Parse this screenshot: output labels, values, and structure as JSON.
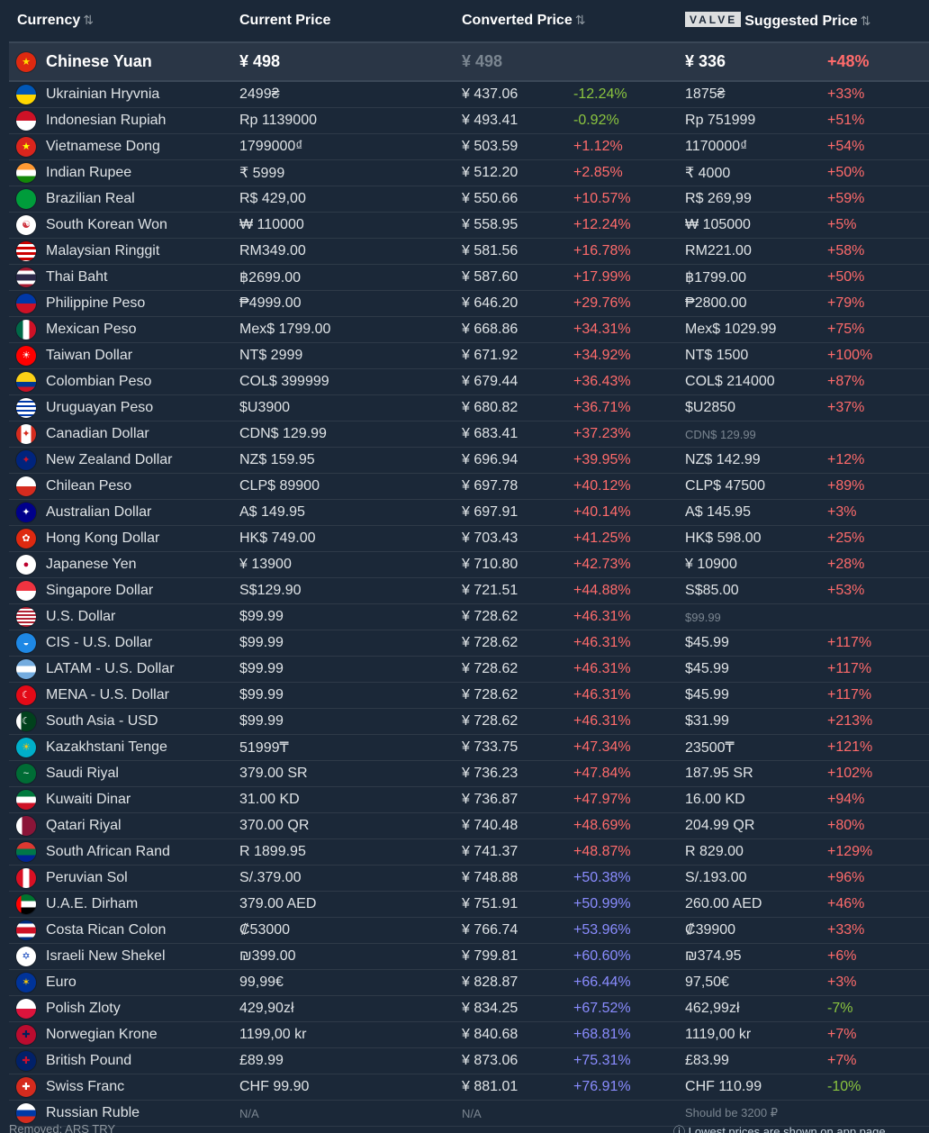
{
  "header": {
    "currency": "Currency",
    "current_price": "Current Price",
    "converted_price": "Converted Price",
    "valve_logo": "VALVE",
    "suggested_price": "Suggested Price",
    "sort_icon": "⇅"
  },
  "base": {
    "name": "Chinese Yuan",
    "flag": "cn",
    "current": "¥ 498",
    "converted": "¥ 498",
    "suggested": "¥ 336",
    "suggested_diff": "+48%"
  },
  "rows": [
    {
      "name": "Ukrainian Hryvnia",
      "flag": "ua",
      "current": "2499₴",
      "converted": "¥ 437.06",
      "diff": "-12.24%",
      "diff_class": "neg",
      "suggested": "1875₴",
      "sdiff": "+33%",
      "sdiff_class": "pos"
    },
    {
      "name": "Indonesian Rupiah",
      "flag": "id",
      "current": "Rp 1139000",
      "converted": "¥ 493.41",
      "diff": "-0.92%",
      "diff_class": "neg",
      "suggested": "Rp 751999",
      "sdiff": "+51%",
      "sdiff_class": "pos"
    },
    {
      "name": "Vietnamese Dong",
      "flag": "vn",
      "current": "1799000₫",
      "converted": "¥ 503.59",
      "diff": "+1.12%",
      "diff_class": "pos",
      "suggested": "1170000₫",
      "sdiff": "+54%",
      "sdiff_class": "pos"
    },
    {
      "name": "Indian Rupee",
      "flag": "in",
      "current": "₹ 5999",
      "converted": "¥ 512.20",
      "diff": "+2.85%",
      "diff_class": "pos",
      "suggested": "₹ 4000",
      "sdiff": "+50%",
      "sdiff_class": "pos"
    },
    {
      "name": "Brazilian Real",
      "flag": "br",
      "current": "R$ 429,00",
      "converted": "¥ 550.66",
      "diff": "+10.57%",
      "diff_class": "pos",
      "suggested": "R$ 269,99",
      "sdiff": "+59%",
      "sdiff_class": "pos"
    },
    {
      "name": "South Korean Won",
      "flag": "kr",
      "current": "₩ 110000",
      "converted": "¥ 558.95",
      "diff": "+12.24%",
      "diff_class": "pos",
      "suggested": "₩ 105000",
      "sdiff": "+5%",
      "sdiff_class": "pos"
    },
    {
      "name": "Malaysian Ringgit",
      "flag": "my",
      "current": "RM349.00",
      "converted": "¥ 581.56",
      "diff": "+16.78%",
      "diff_class": "pos",
      "suggested": "RM221.00",
      "sdiff": "+58%",
      "sdiff_class": "pos"
    },
    {
      "name": "Thai Baht",
      "flag": "th",
      "current": "฿2699.00",
      "converted": "¥ 587.60",
      "diff": "+17.99%",
      "diff_class": "pos",
      "suggested": "฿1799.00",
      "sdiff": "+50%",
      "sdiff_class": "pos"
    },
    {
      "name": "Philippine Peso",
      "flag": "ph",
      "current": "₱4999.00",
      "converted": "¥ 646.20",
      "diff": "+29.76%",
      "diff_class": "pos",
      "suggested": "₱2800.00",
      "sdiff": "+79%",
      "sdiff_class": "pos"
    },
    {
      "name": "Mexican Peso",
      "flag": "mx",
      "current": "Mex$ 1799.00",
      "converted": "¥ 668.86",
      "diff": "+34.31%",
      "diff_class": "pos",
      "suggested": "Mex$ 1029.99",
      "sdiff": "+75%",
      "sdiff_class": "pos"
    },
    {
      "name": "Taiwan Dollar",
      "flag": "tw",
      "current": "NT$ 2999",
      "converted": "¥ 671.92",
      "diff": "+34.92%",
      "diff_class": "pos",
      "suggested": "NT$ 1500",
      "sdiff": "+100%",
      "sdiff_class": "pos"
    },
    {
      "name": "Colombian Peso",
      "flag": "co",
      "current": "COL$ 399999",
      "converted": "¥ 679.44",
      "diff": "+36.43%",
      "diff_class": "pos",
      "suggested": "COL$ 214000",
      "sdiff": "+87%",
      "sdiff_class": "pos"
    },
    {
      "name": "Uruguayan Peso",
      "flag": "uy",
      "current": "$U3900",
      "converted": "¥ 680.82",
      "diff": "+36.71%",
      "diff_class": "pos",
      "suggested": "$U2850",
      "sdiff": "+37%",
      "sdiff_class": "pos"
    },
    {
      "name": "Canadian Dollar",
      "flag": "ca",
      "current": "CDN$ 129.99",
      "converted": "¥ 683.41",
      "diff": "+37.23%",
      "diff_class": "pos",
      "suggested": "CDN$ 129.99",
      "suggested_class": "dim",
      "sdiff": "",
      "sdiff_class": "pos"
    },
    {
      "name": "New Zealand Dollar",
      "flag": "nz",
      "current": "NZ$ 159.95",
      "converted": "¥ 696.94",
      "diff": "+39.95%",
      "diff_class": "pos",
      "suggested": "NZ$ 142.99",
      "sdiff": "+12%",
      "sdiff_class": "pos"
    },
    {
      "name": "Chilean Peso",
      "flag": "cl",
      "current": "CLP$ 89900",
      "converted": "¥ 697.78",
      "diff": "+40.12%",
      "diff_class": "pos",
      "suggested": "CLP$ 47500",
      "sdiff": "+89%",
      "sdiff_class": "pos"
    },
    {
      "name": "Australian Dollar",
      "flag": "au",
      "current": "A$ 149.95",
      "converted": "¥ 697.91",
      "diff": "+40.14%",
      "diff_class": "pos",
      "suggested": "A$ 145.95",
      "sdiff": "+3%",
      "sdiff_class": "pos"
    },
    {
      "name": "Hong Kong Dollar",
      "flag": "hk",
      "current": "HK$ 749.00",
      "converted": "¥ 703.43",
      "diff": "+41.25%",
      "diff_class": "pos",
      "suggested": "HK$ 598.00",
      "sdiff": "+25%",
      "sdiff_class": "pos"
    },
    {
      "name": "Japanese Yen",
      "flag": "jp",
      "current": "¥ 13900",
      "converted": "¥ 710.80",
      "diff": "+42.73%",
      "diff_class": "pos",
      "suggested": "¥ 10900",
      "sdiff": "+28%",
      "sdiff_class": "pos"
    },
    {
      "name": "Singapore Dollar",
      "flag": "sg",
      "current": "S$129.90",
      "converted": "¥ 721.51",
      "diff": "+44.88%",
      "diff_class": "pos",
      "suggested": "S$85.00",
      "sdiff": "+53%",
      "sdiff_class": "pos"
    },
    {
      "name": "U.S. Dollar",
      "flag": "us",
      "current": "$99.99",
      "converted": "¥ 728.62",
      "diff": "+46.31%",
      "diff_class": "pos",
      "suggested": "$99.99",
      "suggested_class": "dim",
      "sdiff": "",
      "sdiff_class": "pos"
    },
    {
      "name": "CIS - U.S. Dollar",
      "flag": "cis",
      "current": "$99.99",
      "converted": "¥ 728.62",
      "diff": "+46.31%",
      "diff_class": "pos",
      "suggested": "$45.99",
      "sdiff": "+117%",
      "sdiff_class": "pos"
    },
    {
      "name": "LATAM - U.S. Dollar",
      "flag": "latam",
      "current": "$99.99",
      "converted": "¥ 728.62",
      "diff": "+46.31%",
      "diff_class": "pos",
      "suggested": "$45.99",
      "sdiff": "+117%",
      "sdiff_class": "pos"
    },
    {
      "name": "MENA - U.S. Dollar",
      "flag": "mena",
      "current": "$99.99",
      "converted": "¥ 728.62",
      "diff": "+46.31%",
      "diff_class": "pos",
      "suggested": "$45.99",
      "sdiff": "+117%",
      "sdiff_class": "pos"
    },
    {
      "name": "South Asia - USD",
      "flag": "pk",
      "current": "$99.99",
      "converted": "¥ 728.62",
      "diff": "+46.31%",
      "diff_class": "pos",
      "suggested": "$31.99",
      "sdiff": "+213%",
      "sdiff_class": "pos"
    },
    {
      "name": "Kazakhstani Tenge",
      "flag": "kz",
      "current": "51999₸",
      "converted": "¥ 733.75",
      "diff": "+47.34%",
      "diff_class": "pos",
      "suggested": "23500₸",
      "sdiff": "+121%",
      "sdiff_class": "pos"
    },
    {
      "name": "Saudi Riyal",
      "flag": "sa",
      "current": "379.00 SR",
      "converted": "¥ 736.23",
      "diff": "+47.84%",
      "diff_class": "pos",
      "suggested": "187.95 SR",
      "sdiff": "+102%",
      "sdiff_class": "pos"
    },
    {
      "name": "Kuwaiti Dinar",
      "flag": "kw",
      "current": "31.00 KD",
      "converted": "¥ 736.87",
      "diff": "+47.97%",
      "diff_class": "pos",
      "suggested": "16.00 KD",
      "sdiff": "+94%",
      "sdiff_class": "pos"
    },
    {
      "name": "Qatari Riyal",
      "flag": "qa",
      "current": "370.00 QR",
      "converted": "¥ 740.48",
      "diff": "+48.69%",
      "diff_class": "pos",
      "suggested": "204.99 QR",
      "sdiff": "+80%",
      "sdiff_class": "pos"
    },
    {
      "name": "South African Rand",
      "flag": "za",
      "current": "R 1899.95",
      "converted": "¥ 741.37",
      "diff": "+48.87%",
      "diff_class": "pos",
      "suggested": "R 829.00",
      "sdiff": "+129%",
      "sdiff_class": "pos"
    },
    {
      "name": "Peruvian Sol",
      "flag": "pe",
      "current": "S/.379.00",
      "converted": "¥ 748.88",
      "diff": "+50.38%",
      "diff_class": "pur",
      "suggested": "S/.193.00",
      "sdiff": "+96%",
      "sdiff_class": "pos"
    },
    {
      "name": "U.A.E. Dirham",
      "flag": "ae",
      "current": "379.00 AED",
      "converted": "¥ 751.91",
      "diff": "+50.99%",
      "diff_class": "pur",
      "suggested": "260.00 AED",
      "sdiff": "+46%",
      "sdiff_class": "pos"
    },
    {
      "name": "Costa Rican Colon",
      "flag": "cr",
      "current": "₡53000",
      "converted": "¥ 766.74",
      "diff": "+53.96%",
      "diff_class": "pur",
      "suggested": "₡39900",
      "sdiff": "+33%",
      "sdiff_class": "pos"
    },
    {
      "name": "Israeli New Shekel",
      "flag": "il",
      "current": "₪399.00",
      "converted": "¥ 799.81",
      "diff": "+60.60%",
      "diff_class": "pur",
      "suggested": "₪374.95",
      "sdiff": "+6%",
      "sdiff_class": "pos"
    },
    {
      "name": "Euro",
      "flag": "eu",
      "current": "99,99€",
      "converted": "¥ 828.87",
      "diff": "+66.44%",
      "diff_class": "pur",
      "suggested": "97,50€",
      "sdiff": "+3%",
      "sdiff_class": "pos"
    },
    {
      "name": "Polish Zloty",
      "flag": "pl",
      "current": "429,90zł",
      "converted": "¥ 834.25",
      "diff": "+67.52%",
      "diff_class": "pur",
      "suggested": "462,99zł",
      "sdiff": "-7%",
      "sdiff_class": "neg"
    },
    {
      "name": "Norwegian Krone",
      "flag": "no",
      "current": "1199,00 kr",
      "converted": "¥ 840.68",
      "diff": "+68.81%",
      "diff_class": "pur",
      "suggested": "1119,00 kr",
      "sdiff": "+7%",
      "sdiff_class": "pos"
    },
    {
      "name": "British Pound",
      "flag": "gb",
      "current": "£89.99",
      "converted": "¥ 873.06",
      "diff": "+75.31%",
      "diff_class": "pur",
      "suggested": "£83.99",
      "sdiff": "+7%",
      "sdiff_class": "pos"
    },
    {
      "name": "Swiss Franc",
      "flag": "ch",
      "current": "CHF 99.90",
      "converted": "¥ 881.01",
      "diff": "+76.91%",
      "diff_class": "pur",
      "suggested": "CHF 110.99",
      "sdiff": "-10%",
      "sdiff_class": "neg"
    },
    {
      "name": "Russian Ruble",
      "flag": "ru",
      "current": "N/A",
      "current_class": "dim",
      "converted": "N/A",
      "converted_class": "dim",
      "diff": "",
      "diff_class": "pos",
      "suggested": "Should be 3200 ₽",
      "suggested_class": "dim",
      "sdiff": "",
      "sdiff_class": "pos"
    }
  ],
  "footer": {
    "left": "Removed: ARS TRY",
    "right": "ⓘ Lowest prices are shown on app page"
  },
  "colors": {
    "background": "#1b2838",
    "negative": "#8bc53f",
    "positive": "#ff6b6b",
    "purple": "#8a8cff"
  }
}
